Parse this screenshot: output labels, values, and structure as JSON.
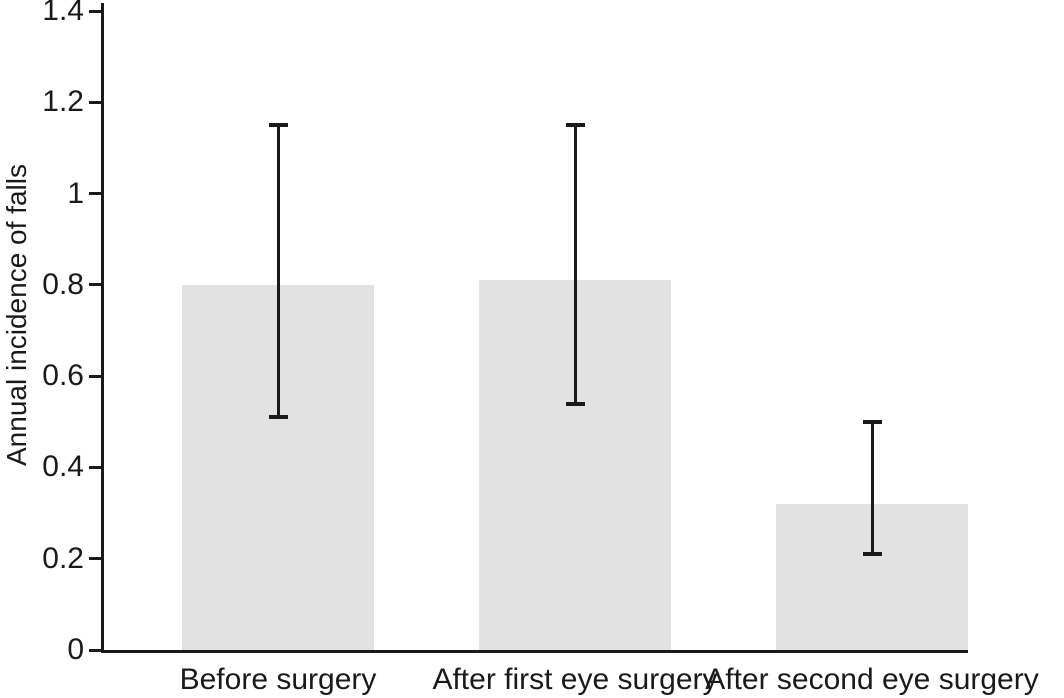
{
  "chart_data": {
    "type": "bar",
    "title": "",
    "xlabel": "",
    "ylabel": "Annual incidence of falls",
    "categories": [
      "Before surgery",
      "After first eye surgery",
      "After second eye surgery"
    ],
    "values": [
      0.8,
      0.81,
      0.32
    ],
    "error_bars": {
      "low": [
        0.51,
        0.54,
        0.21
      ],
      "high": [
        1.15,
        1.15,
        0.5
      ]
    },
    "ylim": [
      0,
      1.4
    ],
    "yticks": [
      0,
      0.2,
      0.4,
      0.6,
      0.8,
      1,
      1.2,
      1.4
    ],
    "ytick_labels": [
      "0",
      "0.2",
      "0.4",
      "0.6",
      "0.8",
      "1",
      "1.2",
      "1.4"
    ],
    "grid": false,
    "legend": "none",
    "colors": {
      "bar_fill": "#e2e2e2",
      "error_bar": "#1a1a1a",
      "axis": "#1a1a1a",
      "text": "#1a1a1a",
      "background": "#ffffff"
    }
  }
}
